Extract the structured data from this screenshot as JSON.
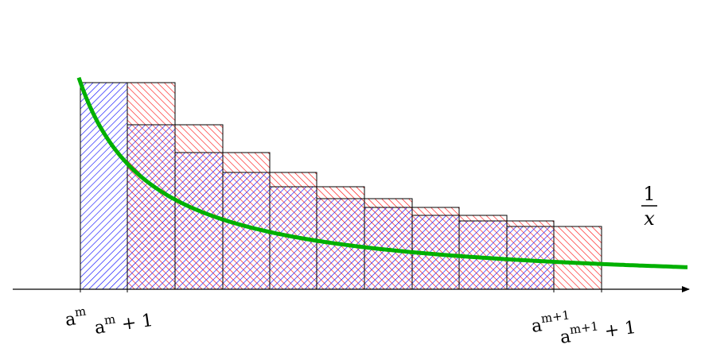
{
  "figure": {
    "curve_label": {
      "numerator": "1",
      "denominator": "x"
    },
    "x_tick_labels": [
      {
        "base": "a",
        "sup": "m",
        "tail": ""
      },
      {
        "base": "a",
        "sup": "m",
        "tail": " + 1"
      },
      {
        "base": "a",
        "sup": "m+1",
        "tail": ""
      },
      {
        "base": "a",
        "sup": "m+1",
        "tail": " + 1"
      }
    ],
    "blue_rectangles": 10,
    "red_rectangles": 10,
    "colors": {
      "blue_hatch": "#0000ff",
      "red_hatch": "#ff0000",
      "curve": "#00b000",
      "axis": "#000000"
    }
  }
}
